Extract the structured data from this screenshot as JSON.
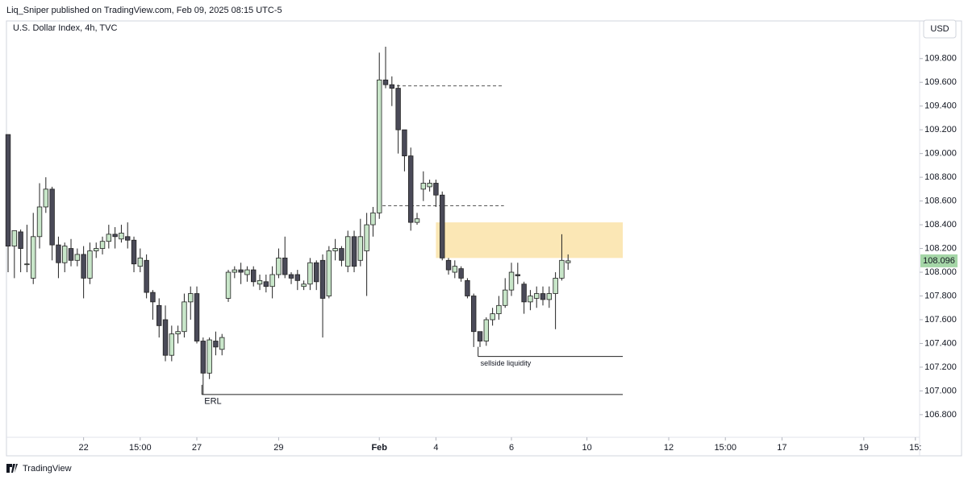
{
  "header": {
    "publisher": "Liq_Sniper published on TradingView.com, Feb 09, 2025 08:15 UTC-5",
    "symbol": "U.S. Dollar Index, 4h, TVC",
    "currency": "USD",
    "brand": "TradingView"
  },
  "chart_data": {
    "type": "candlestick",
    "up_color": "#c8e6c9",
    "down_color": "#4a4a58",
    "xlim": [
      -0.26,
      144.87
    ],
    "ylim": [
      106.46,
      110.09
    ],
    "xticks": [
      {
        "value": 12,
        "label": "22"
      },
      {
        "value": 21,
        "label": "15:00"
      },
      {
        "value": 30,
        "label": "27"
      },
      {
        "value": 43,
        "label": "29"
      },
      {
        "value": 59,
        "label": "Feb"
      },
      {
        "value": 68,
        "label": "4"
      },
      {
        "value": 80,
        "label": "6"
      },
      {
        "value": 92,
        "label": "10"
      },
      {
        "value": 105,
        "label": "12"
      },
      {
        "value": 114,
        "label": "15:00"
      },
      {
        "value": 123,
        "label": "17"
      },
      {
        "value": 136,
        "label": "19"
      },
      {
        "value": 144.2,
        "label": "15:"
      }
    ],
    "yticks": [
      {
        "value": 106.8,
        "label": "106.800"
      },
      {
        "value": 107.0,
        "label": "107.000"
      },
      {
        "value": 107.2,
        "label": "107.200"
      },
      {
        "value": 107.4,
        "label": "107.400"
      },
      {
        "value": 107.6,
        "label": "107.600"
      },
      {
        "value": 107.8,
        "label": "107.800"
      },
      {
        "value": 108.0,
        "label": "108.000"
      },
      {
        "value": 108.2,
        "label": "108.200"
      },
      {
        "value": 108.4,
        "label": "108.400"
      },
      {
        "value": 108.6,
        "label": "108.600"
      },
      {
        "value": 108.8,
        "label": "108.800"
      },
      {
        "value": 109.0,
        "label": "109.000"
      },
      {
        "value": 109.2,
        "label": "109.200"
      },
      {
        "value": 109.4,
        "label": "109.400"
      },
      {
        "value": 109.6,
        "label": "109.600"
      },
      {
        "value": 109.8,
        "label": "109.800"
      }
    ],
    "open": [
      109.16,
      108.22,
      108.34,
      108.07,
      107.95,
      108.3,
      108.55,
      108.7,
      108.23,
      108.08,
      108.2,
      108.1,
      108.15,
      107.95,
      108.18,
      108.2,
      108.26,
      108.32,
      108.28,
      108.3,
      108.27,
      108.05,
      108.1,
      107.83,
      107.72,
      107.6,
      107.3,
      107.48,
      107.5,
      107.75,
      107.82,
      107.42,
      107.15,
      107.42,
      107.35,
      107.78,
      108.0,
      108.02,
      107.98,
      108.02,
      107.9,
      107.92,
      107.88,
      107.98,
      108.12,
      107.98,
      107.98,
      107.88,
      107.9,
      108.08,
      108.1,
      107.8,
      108.18,
      108.2,
      108.05,
      108.3,
      108.1,
      108.18,
      108.4,
      108.5,
      109.62,
      109.58,
      109.55,
      109.2,
      108.98,
      108.42,
      108.7,
      108.72,
      108.75,
      108.65,
      108.1,
      108.0,
      108.03,
      107.93,
      107.8,
      107.5,
      107.42,
      107.6,
      107.65,
      107.72,
      107.85,
      107.98,
      107.9,
      107.75,
      107.78,
      107.82,
      107.77,
      107.82,
      107.95,
      108.08
    ],
    "high": [
      109.16,
      108.35,
      108.36,
      108.4,
      108.5,
      108.75,
      108.8,
      108.72,
      108.3,
      108.25,
      108.28,
      108.2,
      108.22,
      108.25,
      108.25,
      108.3,
      108.4,
      108.38,
      108.4,
      108.42,
      108.3,
      108.2,
      108.15,
      107.85,
      107.78,
      107.72,
      107.55,
      107.55,
      107.82,
      107.88,
      107.88,
      107.45,
      107.45,
      107.5,
      107.48,
      108.02,
      108.05,
      108.08,
      108.05,
      108.05,
      107.98,
      107.98,
      108.05,
      108.2,
      108.3,
      108.0,
      108.02,
      107.93,
      108.12,
      108.1,
      108.15,
      108.22,
      108.28,
      108.22,
      108.35,
      108.35,
      108.45,
      108.5,
      108.55,
      109.85,
      109.9,
      109.65,
      109.58,
      109.2,
      109.05,
      108.5,
      108.85,
      108.78,
      108.78,
      108.68,
      108.12,
      108.1,
      108.05,
      107.95,
      107.82,
      107.5,
      107.62,
      107.7,
      107.8,
      107.95,
      108.08,
      108.08,
      107.92,
      107.85,
      107.88,
      107.88,
      107.88,
      108.0,
      108.32,
      108.15
    ],
    "low": [
      108.0,
      107.95,
      108.0,
      108.0,
      107.9,
      108.2,
      108.5,
      108.1,
      107.95,
      108.0,
      108.05,
      108.05,
      107.78,
      107.9,
      108.12,
      108.15,
      108.2,
      108.2,
      108.25,
      108.2,
      108.0,
      108.0,
      107.78,
      107.6,
      107.45,
      107.25,
      107.25,
      107.4,
      107.45,
      107.6,
      107.4,
      106.97,
      107.1,
      107.3,
      107.3,
      107.75,
      107.95,
      107.9,
      107.92,
      107.88,
      107.85,
      107.83,
      107.78,
      107.95,
      107.95,
      107.9,
      107.85,
      107.85,
      107.85,
      107.85,
      107.45,
      107.78,
      108.1,
      108.05,
      108.0,
      108.0,
      108.05,
      107.8,
      108.3,
      108.45,
      109.55,
      109.4,
      109.0,
      108.85,
      108.35,
      108.4,
      108.6,
      108.68,
      108.55,
      108.1,
      107.98,
      107.95,
      107.92,
      107.78,
      107.37,
      107.37,
      107.38,
      107.55,
      107.6,
      107.7,
      107.8,
      107.9,
      107.65,
      107.68,
      107.7,
      107.72,
      107.7,
      107.52,
      107.93,
      108.02
    ],
    "close": [
      108.22,
      108.35,
      108.2,
      108.07,
      108.3,
      108.55,
      108.7,
      108.23,
      108.08,
      108.22,
      108.1,
      108.15,
      107.95,
      108.18,
      108.2,
      108.26,
      108.32,
      108.3,
      108.33,
      108.27,
      108.07,
      108.12,
      107.83,
      107.75,
      107.55,
      107.3,
      107.48,
      107.5,
      107.75,
      107.82,
      107.42,
      107.15,
      107.43,
      107.37,
      107.45,
      108.0,
      108.02,
      108.0,
      108.02,
      107.92,
      107.93,
      107.88,
      107.98,
      108.12,
      107.98,
      107.95,
      107.93,
      107.9,
      108.08,
      107.92,
      107.78,
      108.18,
      108.2,
      108.1,
      108.3,
      108.05,
      108.3,
      108.4,
      108.5,
      109.62,
      109.58,
      109.55,
      109.2,
      108.98,
      108.42,
      108.45,
      108.75,
      108.75,
      108.65,
      108.12,
      108.02,
      108.05,
      107.95,
      107.8,
      107.5,
      107.42,
      107.6,
      107.65,
      107.72,
      107.85,
      108.0,
      107.97,
      107.75,
      107.8,
      107.82,
      107.77,
      107.82,
      107.95,
      108.1,
      108.096
    ],
    "zone": {
      "low": 108.12,
      "high": 108.42,
      "from": 68,
      "to": 97.7,
      "color": "#fbe7b5"
    },
    "levels": [
      {
        "value": 109.57,
        "from": 60.9,
        "to": 78.8,
        "dashed": true
      },
      {
        "value": 108.56,
        "from": 59.5,
        "to": 78.8,
        "dashed": true
      },
      {
        "value": 107.29,
        "from": 74.7,
        "to": 97.7,
        "dashed": false,
        "label": "sellside liquidity"
      },
      {
        "value": 106.97,
        "from": 30.8,
        "to": 97.7,
        "dashed": false,
        "label": "ERL"
      }
    ]
  }
}
